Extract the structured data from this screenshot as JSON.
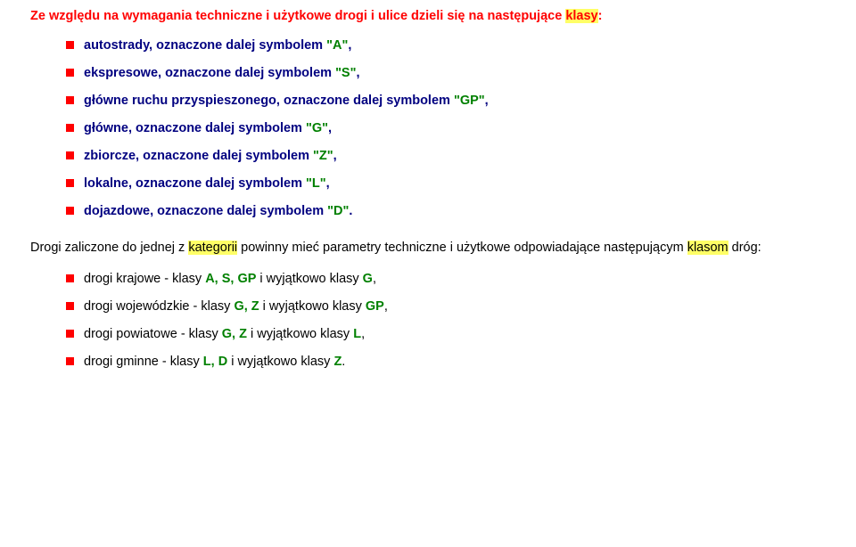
{
  "heading": {
    "pre": "Ze względu na wymagania techniczne i użytkowe drogi i ulice dzieli się na następujące ",
    "hl": "klasy",
    "post": ":"
  },
  "list1": {
    "i0": {
      "t": "autostrady, oznaczone dalej symbolem ",
      "sym": "\"A\"",
      "tail": ","
    },
    "i1": {
      "t": "ekspresowe, oznaczone dalej symbolem ",
      "sym": "\"S\"",
      "tail": ","
    },
    "i2": {
      "t": "główne ruchu przyspieszonego, oznaczone dalej symbolem ",
      "sym": "\"GP\"",
      "tail": ","
    },
    "i3": {
      "t": "główne, oznaczone dalej symbolem ",
      "sym": "\"G\"",
      "tail": ","
    },
    "i4": {
      "t": "zbiorcze, oznaczone dalej symbolem ",
      "sym": "\"Z\"",
      "tail": ","
    },
    "i5": {
      "t": "lokalne, oznaczone dalej symbolem ",
      "sym": "\"L\"",
      "tail": ","
    },
    "i6": {
      "t": "dojazdowe, oznaczone dalej symbolem ",
      "sym": "\"D\"",
      "tail": "."
    }
  },
  "para": {
    "p1": "Drogi zaliczone do jednej z ",
    "kw1": "kategorii",
    "p2": " powinny mieć parametry techniczne i użytkowe odpowiadające następującym ",
    "kw2": "klasom",
    "p3": " dróg:"
  },
  "list2": {
    "i0": {
      "t1": "drogi krajowe - klasy ",
      "g1": "A, S, GP",
      "t2": " i wyjątkowo klasy ",
      "g2": "G",
      "tail": ","
    },
    "i1": {
      "t1": "drogi wojewódzkie - klasy ",
      "g1": "G, Z",
      "t2": " i wyjątkowo klasy ",
      "g2": "GP",
      "tail": ","
    },
    "i2": {
      "t1": "drogi powiatowe - klasy ",
      "g1": "G, Z",
      "t2": " i wyjątkowo klasy ",
      "g2": "L",
      "tail": ","
    },
    "i3": {
      "t1": "drogi gminne - klasy ",
      "g1": "L, D",
      "t2": " i wyjątkowo klasy ",
      "g2": "Z",
      "tail": "."
    }
  },
  "colors": {
    "accent_red": "#ff0000",
    "navy": "#000080",
    "green": "#008000",
    "highlight": "#ffff66",
    "bg": "#ffffff"
  },
  "typography": {
    "font_family": "Verdana, Tahoma, Arial, sans-serif",
    "font_size_pt": 11
  }
}
